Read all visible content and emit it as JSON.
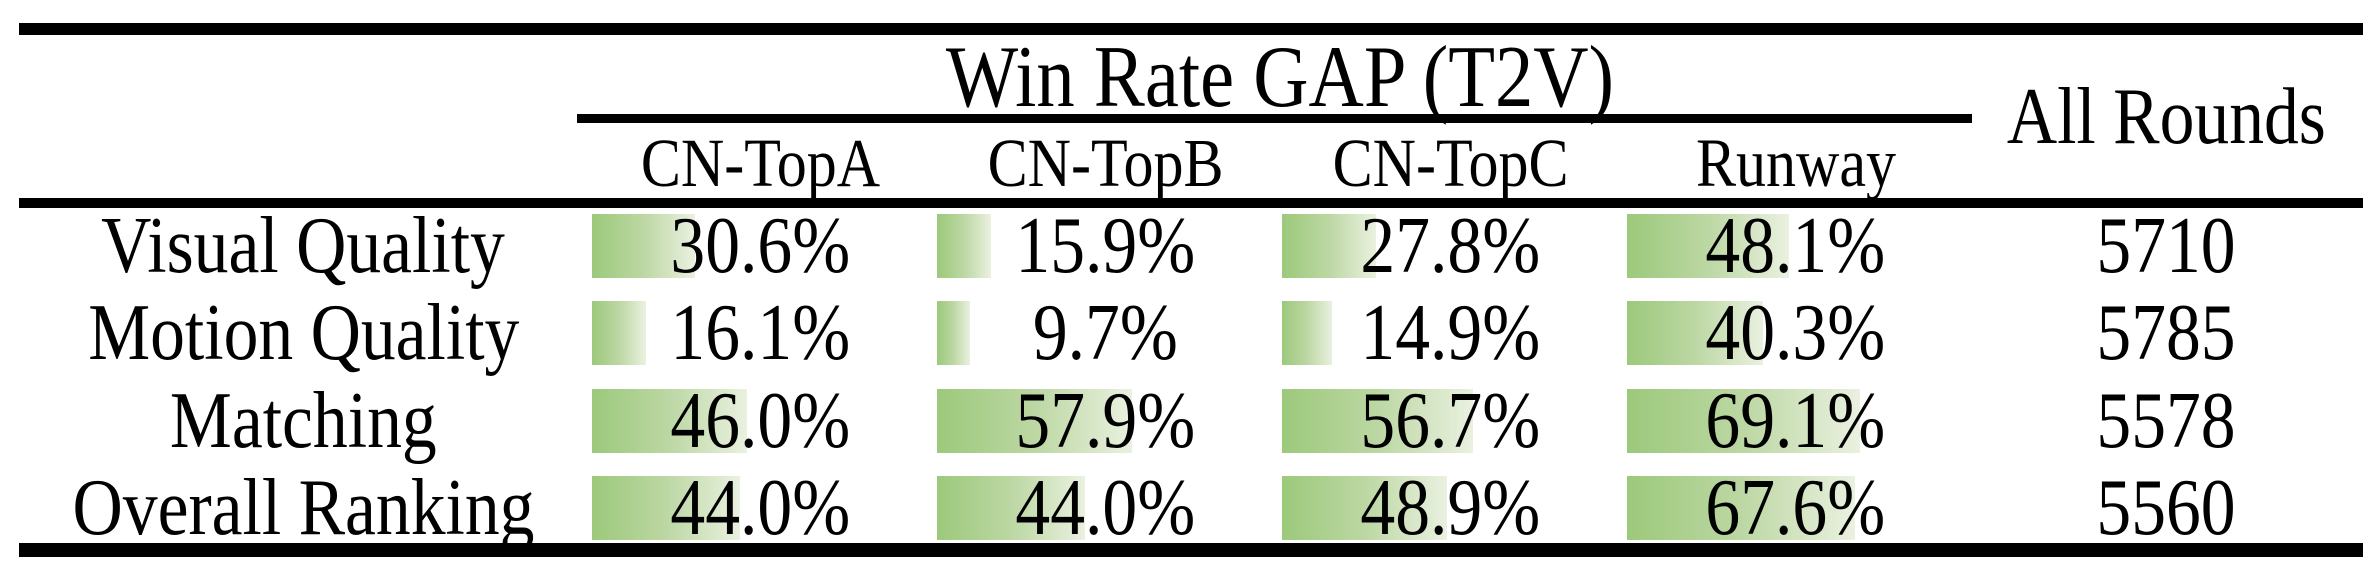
{
  "table": {
    "title": "Win Rate GAP (T2V)",
    "all_rounds_header": "All Rounds",
    "columns": [
      "CN-TopA",
      "CN-TopB",
      "CN-TopC",
      "Runway"
    ],
    "rows": [
      {
        "label": "Visual Quality",
        "pcts": [
          30.6,
          15.9,
          27.8,
          48.1
        ],
        "all_rounds": "5710"
      },
      {
        "label": "Motion Quality",
        "pcts": [
          16.1,
          9.7,
          14.9,
          40.3
        ],
        "all_rounds": "5785"
      },
      {
        "label": "Matching",
        "pcts": [
          46.0,
          57.9,
          56.7,
          69.1
        ],
        "all_rounds": "5578"
      },
      {
        "label": "Overall Ranking",
        "pcts": [
          44.0,
          44.0,
          48.9,
          67.6
        ],
        "all_rounds": "5560"
      }
    ]
  },
  "colors": {
    "rule": "#000000",
    "text": "#000000",
    "background": "#ffffff",
    "bar_gradient_start": "#9cc97b",
    "bar_gradient_end": "#eaf1e0"
  },
  "chart_data": {
    "type": "table",
    "title": "Win Rate GAP (T2V)",
    "categories": [
      "Visual Quality",
      "Motion Quality",
      "Matching",
      "Overall Ranking"
    ],
    "series": [
      {
        "name": "CN-TopA",
        "values": [
          30.6,
          16.1,
          46.0,
          44.0
        ]
      },
      {
        "name": "CN-TopB",
        "values": [
          15.9,
          9.7,
          57.9,
          44.0
        ]
      },
      {
        "name": "CN-TopC",
        "values": [
          27.8,
          14.9,
          56.7,
          48.9
        ]
      },
      {
        "name": "Runway",
        "values": [
          48.1,
          40.3,
          69.1,
          67.6
        ]
      },
      {
        "name": "All Rounds",
        "values": [
          5710,
          5785,
          5578,
          5560
        ]
      }
    ],
    "value_unit": "%",
    "bar_fill": "horizontal green gradient proportional to percent"
  }
}
